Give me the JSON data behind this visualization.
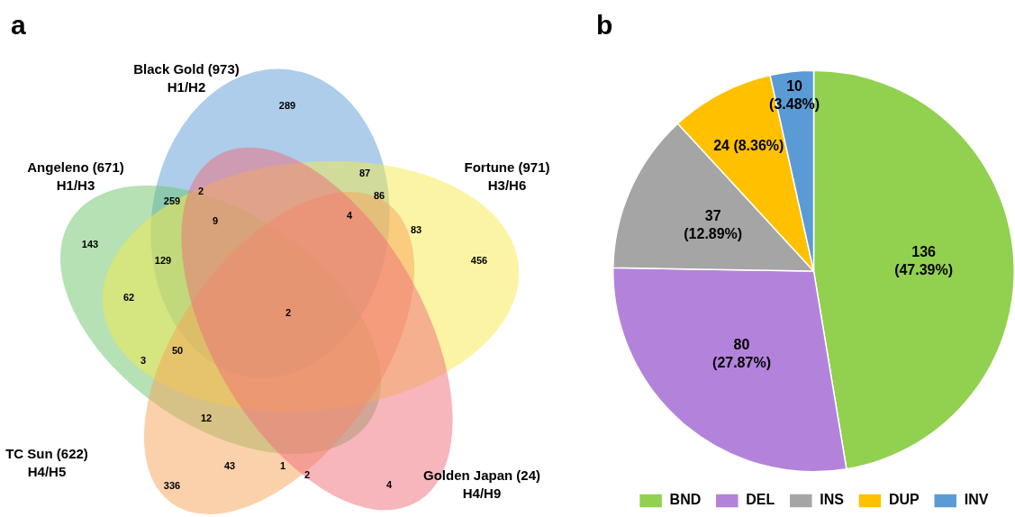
{
  "chart_data": [
    {
      "type": "other",
      "title": "a",
      "categories": [
        "Black Gold (973)\nH1/H2",
        "Angeleno (671)\nH1/H3",
        "Fortune (971)\nH3/H6",
        "TC Sun (622)\nH4/H5",
        "Golden Japan (24)\nH4/H9"
      ],
      "colors": [
        "#5b9bd5",
        "#6cc46c",
        "#f5e94a",
        "#f8a35a",
        "#ef6b7a"
      ],
      "annotations": [
        "289",
        "87",
        "86",
        "4",
        "83",
        "456",
        "2",
        "259",
        "9",
        "143",
        "129",
        "62",
        "2",
        "50",
        "3",
        "12",
        "43",
        "1",
        "2",
        "4",
        "336"
      ]
    },
    {
      "type": "pie",
      "title": "b",
      "categories": [
        "BND",
        "DEL",
        "INS",
        "DUP",
        "INV"
      ],
      "values": [
        136,
        80,
        37,
        24,
        10
      ],
      "colors": [
        "#92d050",
        "#b383dc",
        "#a5a5a5",
        "#ffc000",
        "#5b9bd5"
      ],
      "value_labels": [
        "136\n(47.39%)",
        "80\n(27.87%)",
        "37\n(12.89%)",
        "24 (8.36%)",
        "10\n(3.48%)"
      ],
      "legend": "bottom"
    }
  ]
}
